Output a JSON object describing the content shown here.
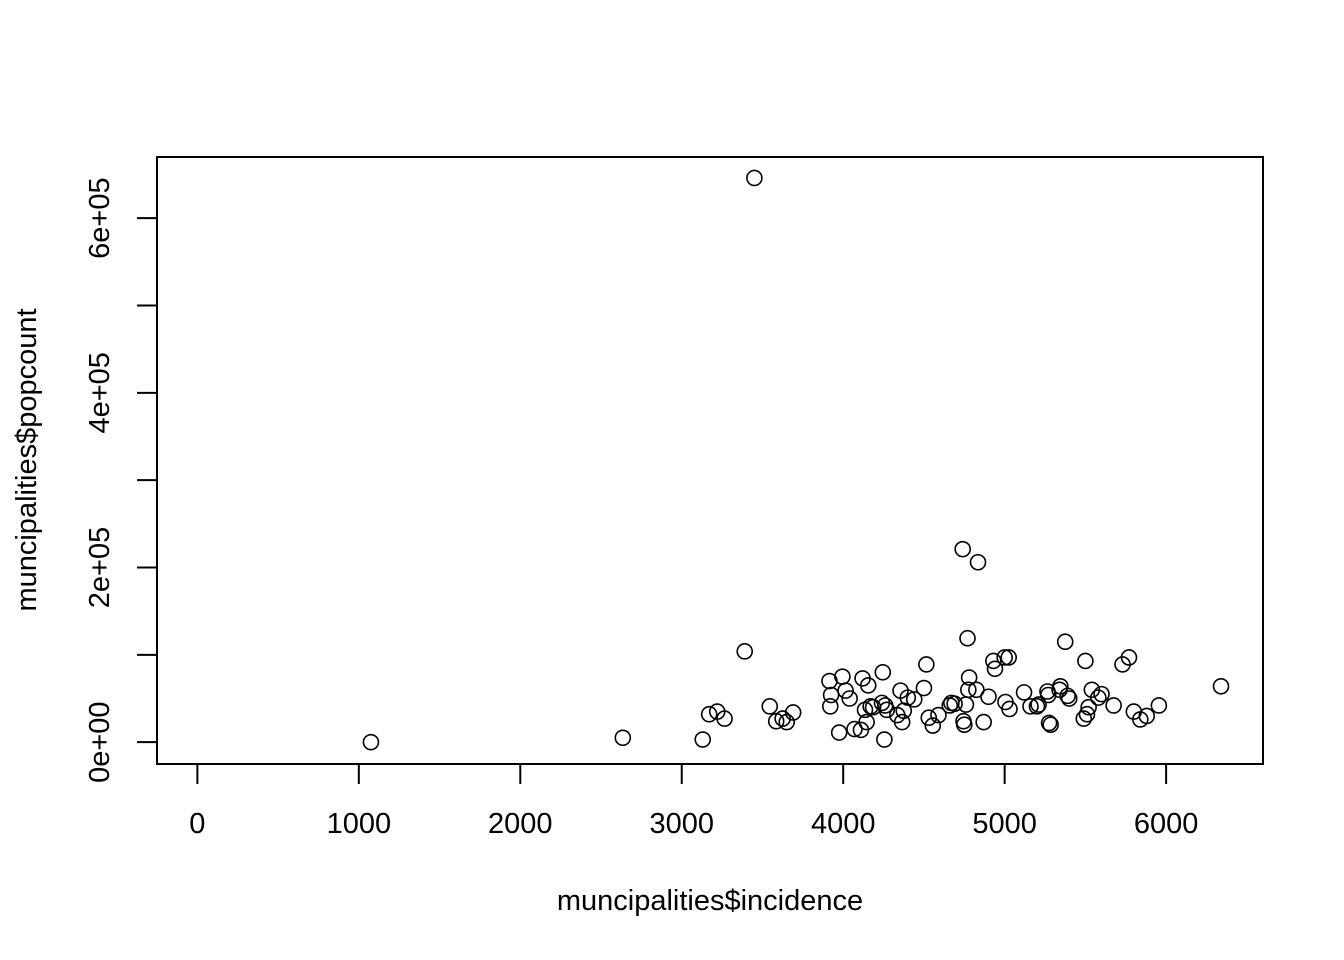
{
  "chart_data": {
    "type": "scatter",
    "title": "",
    "xlabel": "muncipalities$incidence",
    "ylabel": "muncipalities$popcount",
    "xlim": [
      -250,
      6600
    ],
    "ylim": [
      -25000,
      670000
    ],
    "x_ticks": [
      0,
      1000,
      2000,
      3000,
      4000,
      5000,
      6000
    ],
    "x_tick_labels": [
      "0",
      "1000",
      "2000",
      "3000",
      "4000",
      "5000",
      "6000"
    ],
    "y_ticks": [
      0,
      100000,
      200000,
      300000,
      400000,
      500000,
      600000
    ],
    "y_tick_labels": [
      "0e+00",
      "2e+05",
      "4e+05",
      "6e+05"
    ],
    "y_labeled_ticks": [
      0,
      200000,
      400000,
      600000
    ],
    "grid": false,
    "marker": "open-circle",
    "points": [
      [
        1075,
        0
      ],
      [
        2635,
        5000
      ],
      [
        3130,
        3000
      ],
      [
        3170,
        32000
      ],
      [
        3220,
        35000
      ],
      [
        3265,
        27000
      ],
      [
        3390,
        104000
      ],
      [
        3450,
        646000
      ],
      [
        3545,
        41000
      ],
      [
        3585,
        24000
      ],
      [
        3625,
        27000
      ],
      [
        3650,
        23000
      ],
      [
        3690,
        34000
      ],
      [
        3915,
        70000
      ],
      [
        3920,
        41000
      ],
      [
        3925,
        54000
      ],
      [
        3975,
        11000
      ],
      [
        3995,
        75000
      ],
      [
        4015,
        59000
      ],
      [
        4040,
        50000
      ],
      [
        4070,
        15000
      ],
      [
        4110,
        14000
      ],
      [
        4120,
        73000
      ],
      [
        4135,
        37000
      ],
      [
        4145,
        23000
      ],
      [
        4155,
        65000
      ],
      [
        4170,
        41000
      ],
      [
        4185,
        40000
      ],
      [
        4240,
        45000
      ],
      [
        4245,
        80000
      ],
      [
        4255,
        3000
      ],
      [
        4260,
        42000
      ],
      [
        4270,
        37000
      ],
      [
        4335,
        31000
      ],
      [
        4355,
        59000
      ],
      [
        4365,
        23000
      ],
      [
        4375,
        36000
      ],
      [
        4400,
        51000
      ],
      [
        4440,
        49000
      ],
      [
        4500,
        62000
      ],
      [
        4515,
        89000
      ],
      [
        4530,
        28000
      ],
      [
        4555,
        19000
      ],
      [
        4590,
        31000
      ],
      [
        4660,
        42000
      ],
      [
        4670,
        45000
      ],
      [
        4690,
        44000
      ],
      [
        4740,
        221000
      ],
      [
        4745,
        24000
      ],
      [
        4750,
        20000
      ],
      [
        4760,
        43000
      ],
      [
        4770,
        119000
      ],
      [
        4775,
        60000
      ],
      [
        4780,
        74000
      ],
      [
        4825,
        60000
      ],
      [
        4835,
        206000
      ],
      [
        4870,
        23000
      ],
      [
        4900,
        52000
      ],
      [
        4930,
        93000
      ],
      [
        4940,
        84000
      ],
      [
        5000,
        97000
      ],
      [
        5005,
        46000
      ],
      [
        5025,
        97000
      ],
      [
        5030,
        38000
      ],
      [
        5120,
        57000
      ],
      [
        5160,
        41000
      ],
      [
        5200,
        41000
      ],
      [
        5210,
        43000
      ],
      [
        5265,
        58000
      ],
      [
        5270,
        54000
      ],
      [
        5275,
        22000
      ],
      [
        5285,
        20000
      ],
      [
        5340,
        60000
      ],
      [
        5345,
        64000
      ],
      [
        5375,
        115000
      ],
      [
        5390,
        53000
      ],
      [
        5400,
        50000
      ],
      [
        5490,
        27000
      ],
      [
        5500,
        93000
      ],
      [
        5510,
        32000
      ],
      [
        5520,
        40000
      ],
      [
        5540,
        60000
      ],
      [
        5580,
        51000
      ],
      [
        5600,
        55000
      ],
      [
        5675,
        42000
      ],
      [
        5730,
        89000
      ],
      [
        5770,
        97000
      ],
      [
        5800,
        35000
      ],
      [
        5840,
        26000
      ],
      [
        5880,
        30000
      ],
      [
        5955,
        42000
      ],
      [
        6340,
        64000
      ]
    ]
  }
}
